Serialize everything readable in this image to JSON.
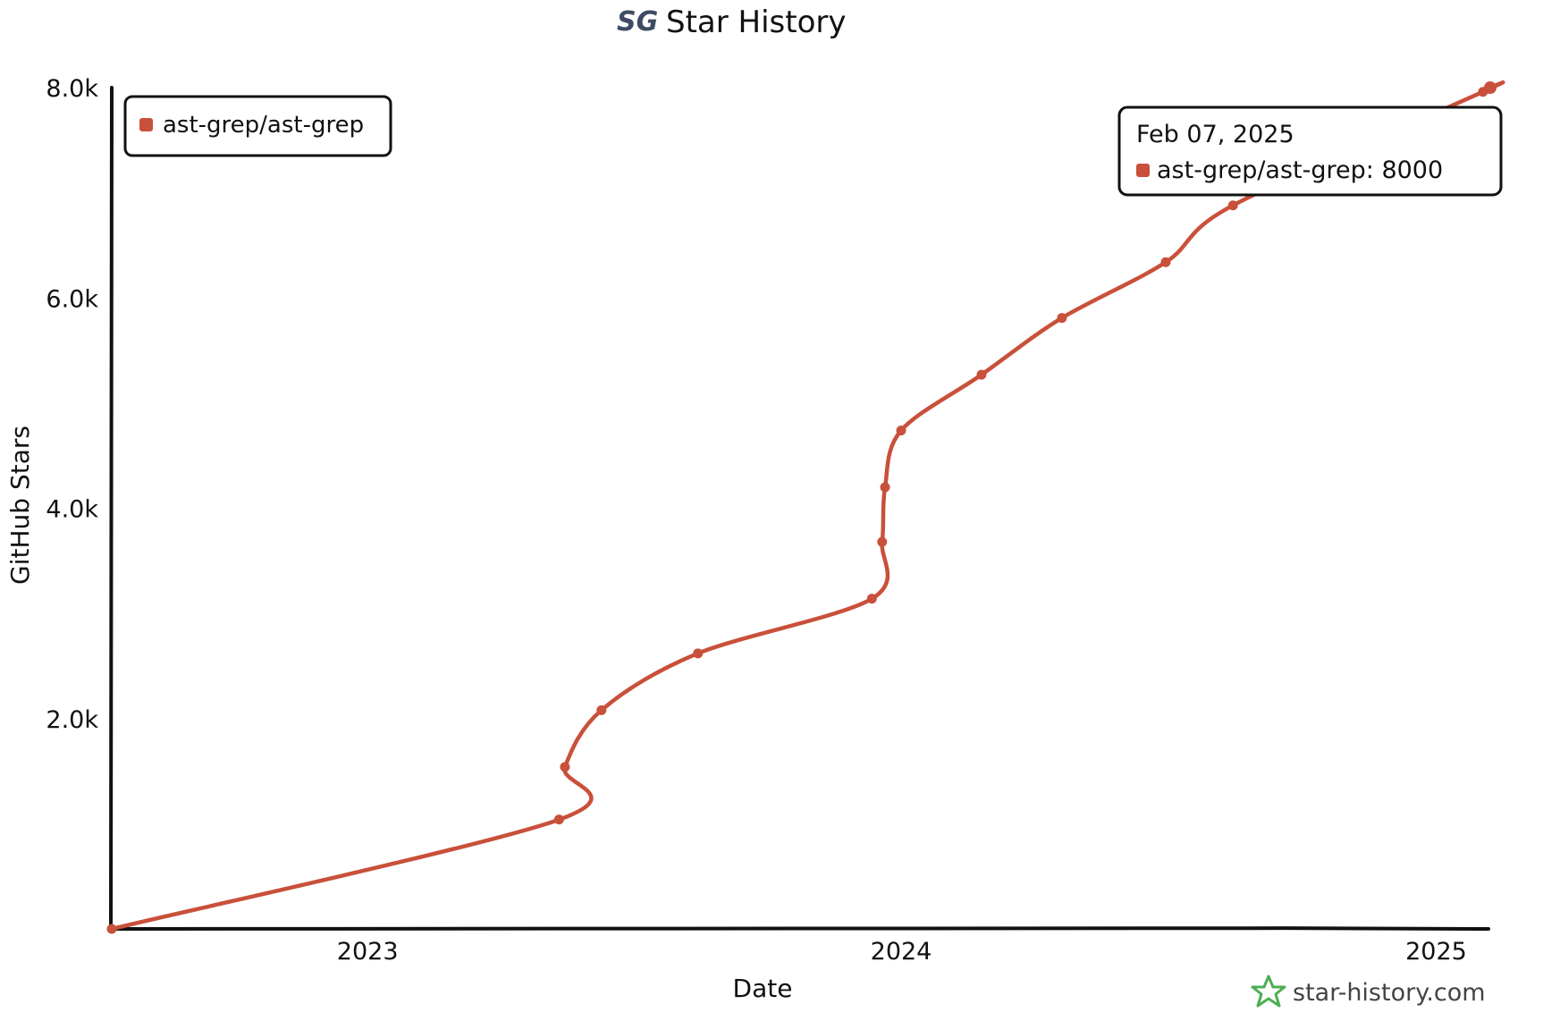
{
  "header": {
    "logo_text": "SG",
    "title": "Star History"
  },
  "brand": {
    "icon": "star-history-logo-icon",
    "text": "star-history.com",
    "color": "#4caf50"
  },
  "tooltip": {
    "date": "Feb 07, 2025",
    "label": "ast-grep/ast-grep: 8000"
  },
  "colors": {
    "series": "#c9503a",
    "axis": "#111111"
  },
  "chart_data": {
    "type": "line",
    "title": "Star History",
    "xlabel": "Date",
    "ylabel": "GitHub Stars",
    "x_ticks": [
      "2023",
      "2024",
      "2025"
    ],
    "x_tick_dates": [
      "2023-01-01",
      "2024-01-01",
      "2025-01-01"
    ],
    "y_ticks": [
      "2.0k",
      "4.0k",
      "6.0k",
      "8.0k"
    ],
    "y_tick_values": [
      2000,
      4000,
      6000,
      8000
    ],
    "xlim": [
      "2022-07-10",
      "2025-02-07"
    ],
    "ylim": [
      0,
      8000
    ],
    "legend": {
      "position": "top-left"
    },
    "grid": false,
    "series": [
      {
        "name": "ast-grep/ast-grep",
        "color": "#c9503a",
        "points": [
          {
            "x": "2022-07-10",
            "y": 0
          },
          {
            "x": "2023-05-12",
            "y": 1040
          },
          {
            "x": "2023-05-16",
            "y": 1540
          },
          {
            "x": "2023-06-10",
            "y": 2080
          },
          {
            "x": "2023-08-15",
            "y": 2620
          },
          {
            "x": "2023-12-12",
            "y": 3140
          },
          {
            "x": "2023-12-19",
            "y": 3680
          },
          {
            "x": "2023-12-21",
            "y": 4200
          },
          {
            "x": "2024-01-01",
            "y": 4740
          },
          {
            "x": "2024-02-25",
            "y": 5270
          },
          {
            "x": "2024-04-20",
            "y": 5810
          },
          {
            "x": "2024-06-30",
            "y": 6340
          },
          {
            "x": "2024-08-15",
            "y": 6880
          },
          {
            "x": "2025-02-02",
            "y": 7960
          },
          {
            "x": "2025-02-07",
            "y": 8000
          }
        ]
      }
    ]
  }
}
